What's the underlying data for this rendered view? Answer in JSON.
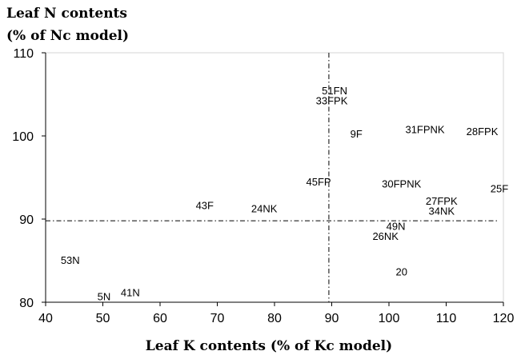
{
  "chart_data": {
    "type": "scatter",
    "ylabel": [
      "Leaf N contents",
      "(% of Nc model)"
    ],
    "xlabel": "Leaf  K contents (% of Kc model)",
    "xlim": [
      40,
      120
    ],
    "ylim": [
      80,
      110
    ],
    "x_ticks": [
      40,
      50,
      60,
      70,
      80,
      90,
      100,
      110,
      120
    ],
    "y_ticks": [
      80,
      90,
      100,
      110
    ],
    "reference_lines": {
      "vertical_x": 89.5,
      "horizontal_y": 89.8
    },
    "points": [
      {
        "label": "51FN",
        "x": 90.5,
        "y": 105.5
      },
      {
        "label": "33FPK",
        "x": 90,
        "y": 104.3
      },
      {
        "label": "9F",
        "x": 94.3,
        "y": 100.3
      },
      {
        "label": "31FPNK",
        "x": 106.3,
        "y": 100.8
      },
      {
        "label": "28FPK",
        "x": 116.3,
        "y": 100.6
      },
      {
        "label": "45FP",
        "x": 87.7,
        "y": 94.5
      },
      {
        "label": "30FPNK",
        "x": 102.2,
        "y": 94.3
      },
      {
        "label": "25F",
        "x": 119.3,
        "y": 93.7
      },
      {
        "label": "27FPK",
        "x": 109.2,
        "y": 92.2
      },
      {
        "label": "34NK",
        "x": 109.2,
        "y": 91
      },
      {
        "label": "43F",
        "x": 67.8,
        "y": 91.7
      },
      {
        "label": "24NK",
        "x": 78.2,
        "y": 91.3
      },
      {
        "label": "49N",
        "x": 101.2,
        "y": 89.2
      },
      {
        "label": "26NK",
        "x": 99.4,
        "y": 88
      },
      {
        "label": "53N",
        "x": 44.3,
        "y": 85.1
      },
      {
        "label": "20",
        "x": 102.2,
        "y": 83.7
      },
      {
        "label": "5N",
        "x": 50.2,
        "y": 80.7
      },
      {
        "label": "41N",
        "x": 54.8,
        "y": 81.2
      }
    ]
  }
}
